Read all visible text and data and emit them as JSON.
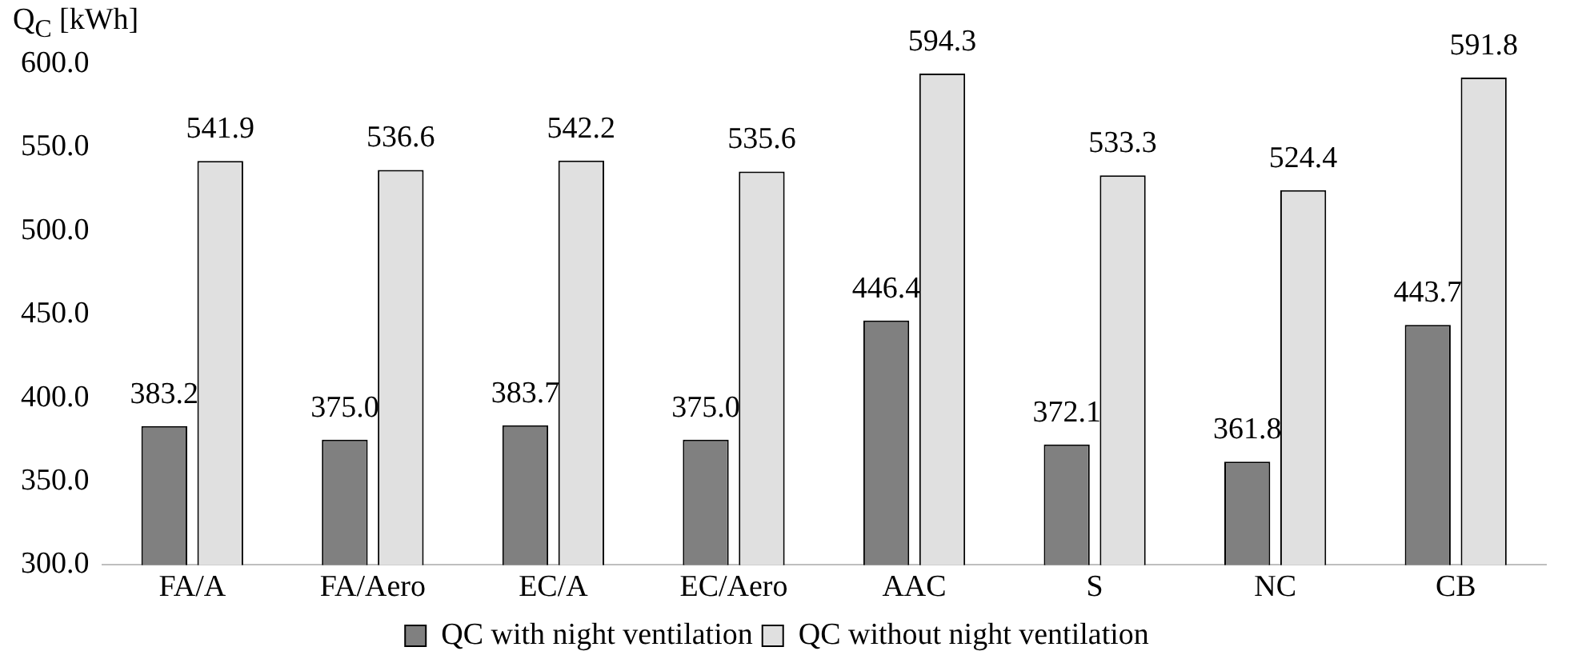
{
  "chart_data": {
    "type": "bar",
    "ylabel": "Q$_{C}$ [kWh]",
    "categories": [
      "FA/A",
      "FA/Aero",
      "EC/A",
      "EC/Aero",
      "AAC",
      "S",
      "NC",
      "CB"
    ],
    "series": [
      {
        "name": "QC with night ventilation",
        "color": "#808080",
        "values": [
          383.2,
          375.0,
          383.7,
          375.0,
          446.4,
          372.1,
          361.8,
          443.7
        ],
        "value_labels": [
          "383.2",
          "375.0",
          "383.7",
          "375.0",
          "446.4",
          "372.1",
          "361.8",
          "443.7"
        ]
      },
      {
        "name": "QC without night ventilation",
        "color": "#e0e0e0",
        "values": [
          541.9,
          536.6,
          542.2,
          535.6,
          594.3,
          533.3,
          524.4,
          591.8
        ],
        "value_labels": [
          "541.9",
          "536.6",
          "542.2",
          "535.6",
          "594.3",
          "533.3",
          "524.4",
          "591.8"
        ]
      }
    ],
    "ylim": [
      300,
      600
    ],
    "yticks": [
      {
        "value": 300,
        "label": "300.0"
      },
      {
        "value": 350,
        "label": "350.0"
      },
      {
        "value": 400,
        "label": "400.0"
      },
      {
        "value": 450,
        "label": "450.0"
      },
      {
        "value": 500,
        "label": "500.0"
      },
      {
        "value": 550,
        "label": "550.0"
      },
      {
        "value": 600,
        "label": "600.0"
      }
    ],
    "grid": false,
    "legend": "bottom"
  }
}
